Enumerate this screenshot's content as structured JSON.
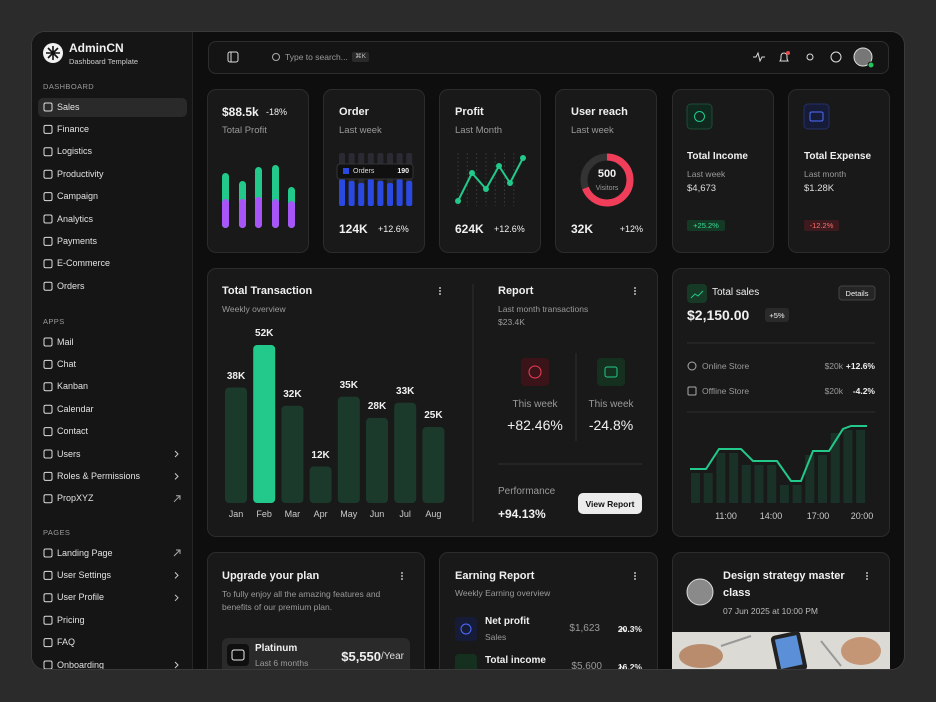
{
  "sidebar": {
    "brand": "AdminCN",
    "subtitle": "Dashboard Template",
    "sections": [
      {
        "title": "DASHBOARD",
        "items": [
          "Sales",
          "Finance",
          "Logistics",
          "Productivity",
          "Campaign",
          "Analytics",
          "Payments",
          "E-Commerce",
          "Orders"
        ]
      },
      {
        "title": "APPS",
        "items": [
          "Mail",
          "Chat",
          "Kanban",
          "Calendar",
          "Contact",
          "Users",
          "Roles & Permissions",
          "PropXYZ"
        ]
      },
      {
        "title": "PAGES",
        "items": [
          "Landing Page",
          "User Settings",
          "User Profile",
          "Pricing",
          "FAQ",
          "Onboarding"
        ]
      }
    ]
  },
  "topbar": {
    "search_placeholder": "Type to search...",
    "shortcut": "⌘K"
  },
  "stats": [
    {
      "value": "$88.5k",
      "change": "-18%",
      "label": "Total Profit"
    },
    {
      "title": "Order",
      "subtitle": "Last week",
      "tooltip_label": "Orders",
      "tooltip_value": "190",
      "value": "124K",
      "change": "+12.6%"
    },
    {
      "title": "Profit",
      "subtitle": "Last Month",
      "value": "624K",
      "change": "+12.6%"
    },
    {
      "title": "User reach",
      "subtitle": "Last week",
      "ring_value": "500",
      "ring_label": "Visitors",
      "value": "32K",
      "change": "+12%"
    },
    {
      "title": "Total Income",
      "subtitle": "Last week",
      "value": "$4,673",
      "change": "+25.2%"
    },
    {
      "title": "Total Expense",
      "subtitle": "Last month",
      "value": "$1.28K",
      "change": "-12.2%"
    }
  ],
  "transaction": {
    "title": "Total Transaction",
    "subtitle": "Weekly overview",
    "categories": [
      "Jan",
      "Feb",
      "Mar",
      "Apr",
      "May",
      "Jun",
      "Jul",
      "Aug"
    ],
    "values": [
      38,
      52,
      32,
      12,
      35,
      28,
      33,
      25
    ],
    "value_labels": [
      "38K",
      "52K",
      "32K",
      "12K",
      "35K",
      "28K",
      "33K",
      "25K"
    ],
    "colors": [
      "#1b3a2b",
      "#22c98a",
      "#1b3a2b",
      "#1b3a2b",
      "#1b3a2b",
      "#1b3a2b",
      "#1b3a2b",
      "#1b3a2b"
    ]
  },
  "report": {
    "title": "Report",
    "subtitle": "Last month transactions",
    "amount": "$23.4K",
    "items": [
      {
        "label": "This week",
        "value": "+82.46%"
      },
      {
        "label": "This week",
        "value": "-24.8%"
      }
    ],
    "performance_label": "Performance",
    "performance_value": "+94.13%",
    "button": "View Report"
  },
  "total_sales": {
    "title": "Total sales",
    "button": "Details",
    "value": "$2,150.00",
    "change": "+5%",
    "channels": [
      {
        "name": "Online Store",
        "amount": "$20k",
        "change": "+12.6%"
      },
      {
        "name": "Offline Store",
        "amount": "$20k",
        "change": "-4.2%"
      }
    ],
    "xticks": [
      "11:00",
      "14:00",
      "17:00",
      "20:00"
    ]
  },
  "upgrade": {
    "title": "Upgrade your plan",
    "text": "To fully enjoy all the amazing features and benefits of our premium plan.",
    "plan": "Platinum",
    "period": "Last 6 months",
    "price": "$5,550",
    "unit": "/Year"
  },
  "earning": {
    "title": "Earning Report",
    "subtitle": "Weekly Earning overview",
    "rows": [
      {
        "name": "Net profit",
        "sub": "Sales",
        "amount": "$1,623",
        "change": "20.3%"
      },
      {
        "name": "Total income",
        "amount": "$5,600",
        "change": "16.2%"
      }
    ]
  },
  "event": {
    "title": "Design strategy master class",
    "date": "07 Jun 2025 at 10:00 PM"
  }
}
